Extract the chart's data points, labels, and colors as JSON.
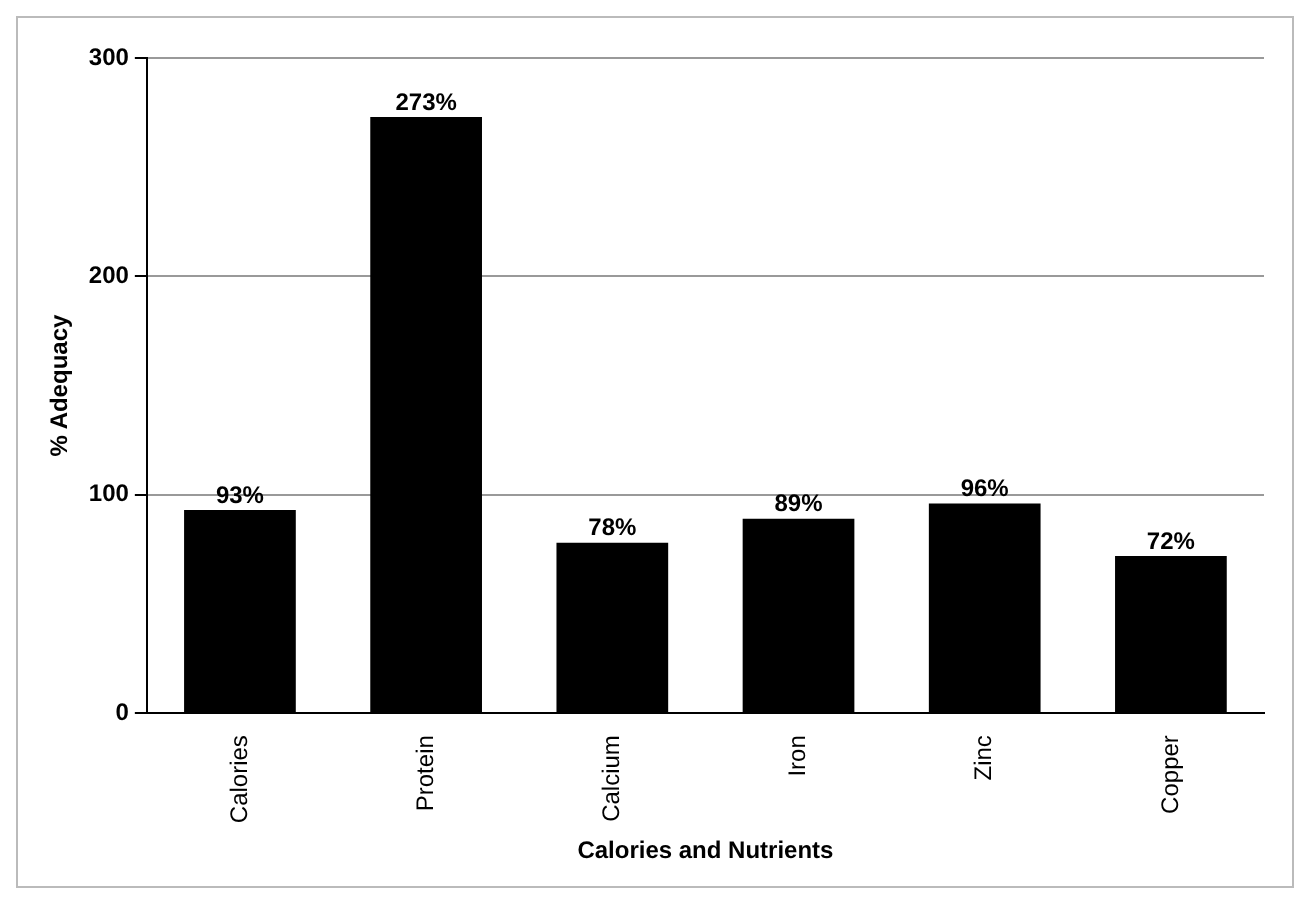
{
  "chart_data": {
    "type": "bar",
    "xlabel": "Calories and Nutrients",
    "ylabel": "% Adequacy",
    "categories": [
      "Calories",
      "Protein",
      "Calcium",
      "Iron",
      "Zinc",
      "Copper"
    ],
    "values": [
      93,
      273,
      78,
      89,
      96,
      72
    ],
    "value_labels": [
      "93%",
      "273%",
      "78%",
      "89%",
      "96%",
      "72%"
    ],
    "color": "#000000",
    "ylim": [
      0,
      300
    ],
    "yticks": [
      0,
      100,
      200,
      300
    ],
    "grid": "y",
    "legend": false
  }
}
